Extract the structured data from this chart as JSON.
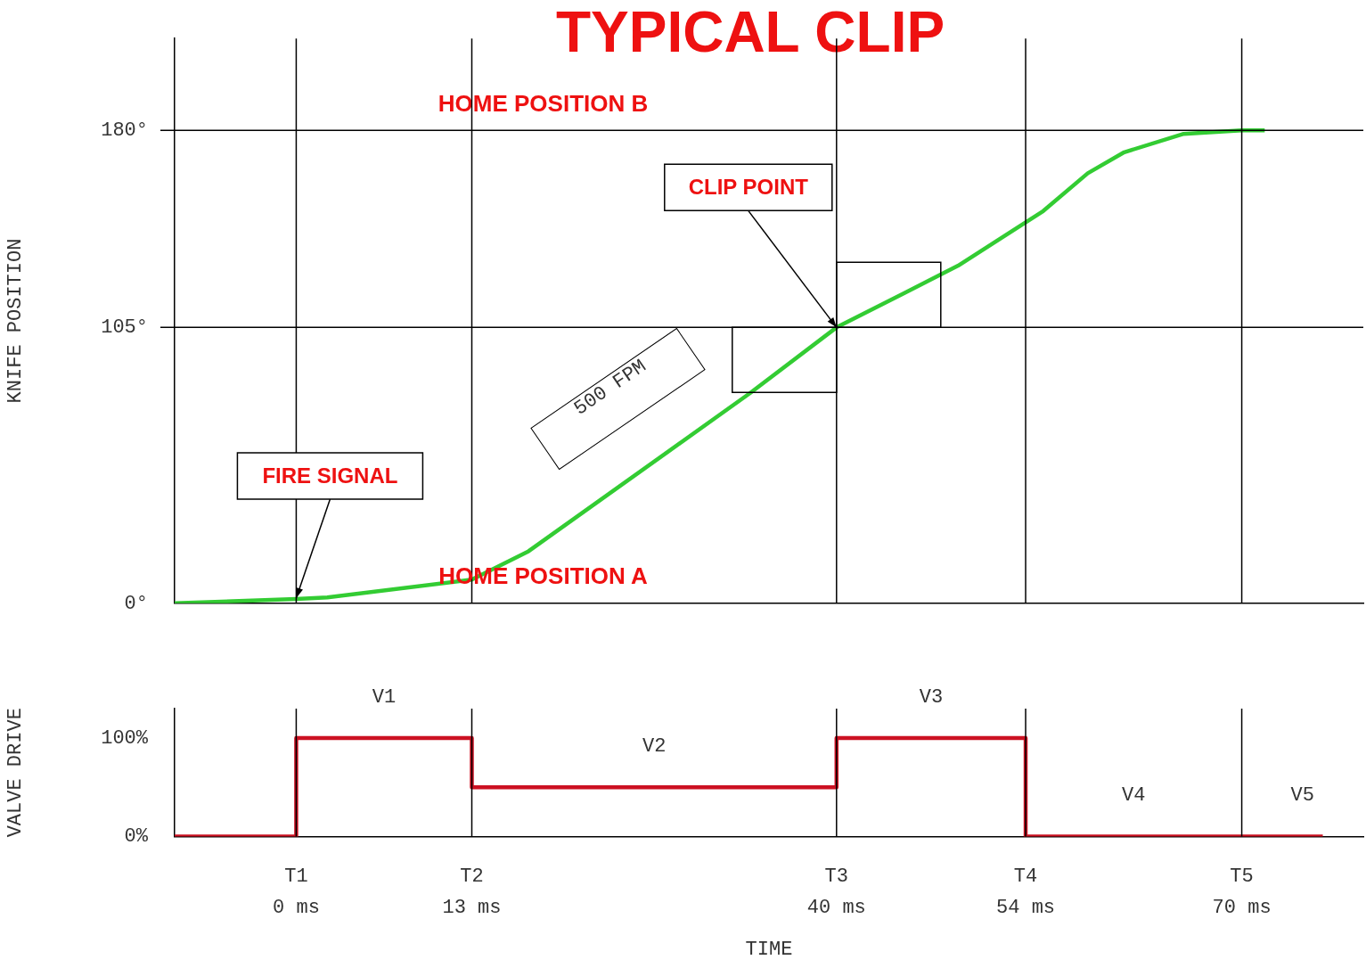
{
  "chart_data": [
    {
      "type": "line",
      "title": "TYPICAL CLIP",
      "ylabel": "KNIFE POSITION",
      "xlim": [
        -9,
        79
      ],
      "ylim": [
        0,
        215
      ],
      "yticks": [
        {
          "value": 0,
          "label": "0°"
        },
        {
          "value": 105,
          "label": "105°"
        },
        {
          "value": 180,
          "label": "180°"
        }
      ],
      "tick_labels": "y",
      "grid": false,
      "legend": false,
      "marker": "none",
      "series": [
        {
          "color": "#33cc33",
          "x": [
            -9,
            0,
            2.3,
            13,
            17.2,
            33.6,
            40,
            49,
            55.3,
            58.6,
            61.3,
            65.7,
            70,
            71.7
          ],
          "values": [
            0,
            1.6,
            2.2,
            9,
            19.8,
            80,
            105,
            128.5,
            149.3,
            163.7,
            171.7,
            178.7,
            180,
            180
          ]
        }
      ],
      "ref_lines": [
        {
          "axis": "y",
          "value": 180,
          "label": "HOME POSITION B",
          "color": "#000000"
        },
        {
          "axis": "y",
          "value": 105,
          "color": "#000000"
        },
        {
          "axis": "x",
          "value": 0,
          "color": "#000000"
        },
        {
          "axis": "x",
          "value": 13,
          "color": "#000000"
        },
        {
          "axis": "x",
          "value": 40,
          "color": "#000000"
        },
        {
          "axis": "x",
          "value": 54,
          "color": "#000000"
        },
        {
          "axis": "x",
          "value": 70,
          "color": "#000000"
        }
      ],
      "annotations": [
        {
          "text": "FIRE SIGNAL",
          "x": 0,
          "y": 2
        },
        {
          "text": "CLIP POINT",
          "x": 40,
          "y": 105
        },
        "500 FPM",
        "HOME POSITION A"
      ]
    },
    {
      "type": "step",
      "ylabel": "VALVE DRIVE",
      "xlabel": "TIME",
      "xlim": [
        -9,
        79
      ],
      "ylim": [
        0,
        130
      ],
      "xticks": [
        {
          "value": 0,
          "label": "0 ms"
        },
        {
          "value": 13,
          "label": "13 ms"
        },
        {
          "value": 40,
          "label": "40 ms"
        },
        {
          "value": 54,
          "label": "54 ms"
        },
        {
          "value": 70,
          "label": "70 ms"
        }
      ],
      "yticks": [
        {
          "value": 0,
          "label": "0%"
        },
        {
          "value": 100,
          "label": "100%"
        }
      ],
      "grid": false,
      "legend": false,
      "marker": "none",
      "series": [
        {
          "color": "#cc1122",
          "x": [
            -9,
            0,
            13,
            40,
            54,
            76
          ],
          "values": [
            0,
            100,
            50,
            100,
            0,
            0
          ]
        }
      ],
      "ref_lines": [
        {
          "axis": "x",
          "value": 0,
          "label": "T1",
          "color": "#000000"
        },
        {
          "axis": "x",
          "value": 13,
          "label": "T2",
          "color": "#000000"
        },
        {
          "axis": "x",
          "value": 40,
          "label": "T3",
          "color": "#000000"
        },
        {
          "axis": "x",
          "value": 54,
          "label": "T4",
          "color": "#000000"
        },
        {
          "axis": "x",
          "value": 70,
          "label": "T5",
          "color": "#000000"
        }
      ],
      "annotations": [
        "V1",
        "V2",
        "V3",
        "V4",
        "V5"
      ]
    }
  ]
}
